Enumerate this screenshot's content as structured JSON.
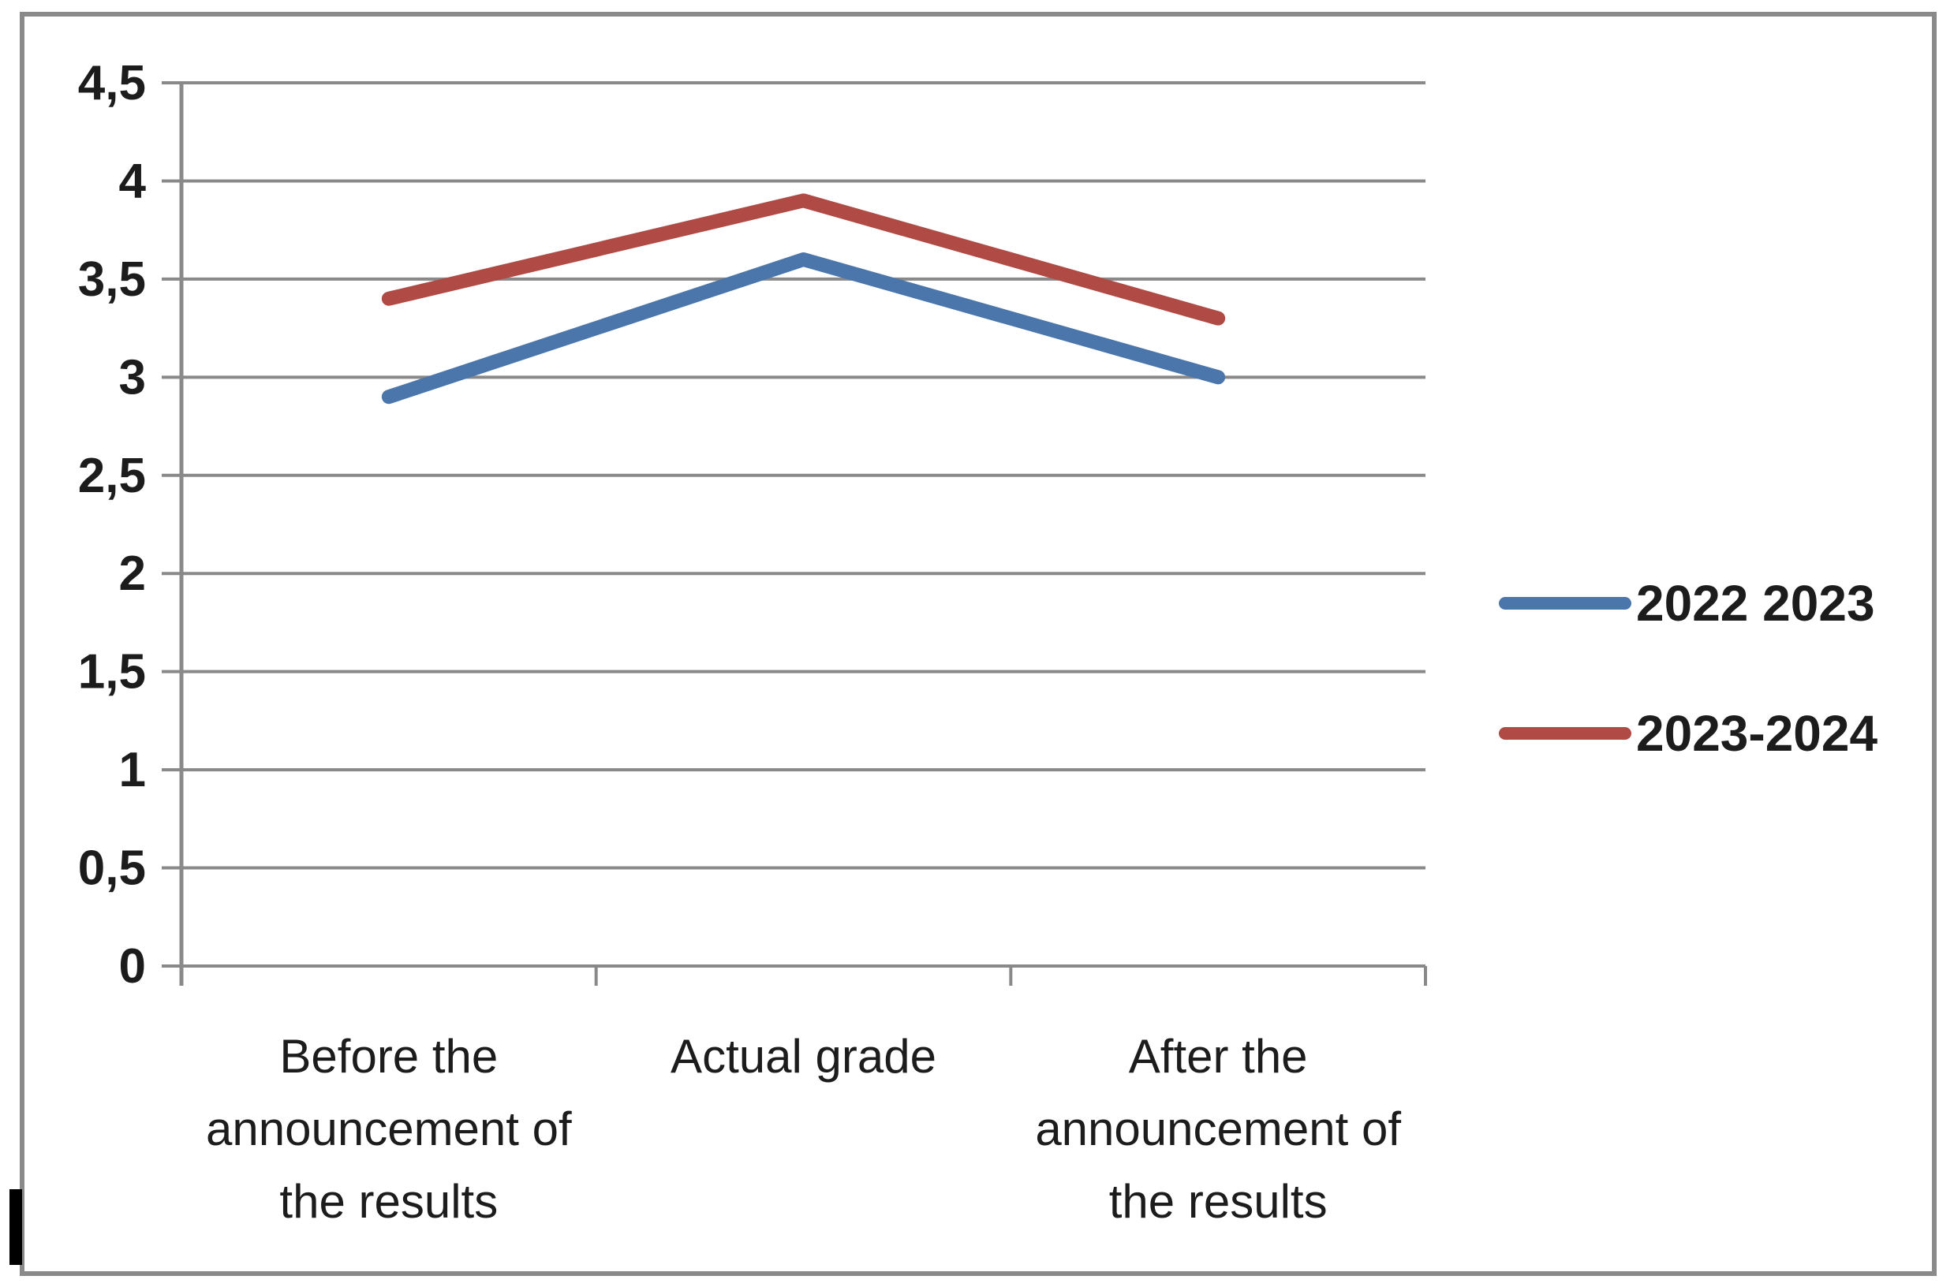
{
  "chart_data": {
    "type": "line",
    "title": "",
    "xlabel": "",
    "ylabel": "",
    "categories": [
      {
        "label": "Before the announcement of the results",
        "lines": [
          "Before the",
          "announcement of",
          "the results"
        ]
      },
      {
        "label": "Actual grade",
        "lines": [
          "Actual grade"
        ]
      },
      {
        "label": "After the announcement of the results",
        "lines": [
          "After the",
          "announcement of",
          "the results"
        ]
      }
    ],
    "series": [
      {
        "name": "2022 2023",
        "color": "#4B76AB",
        "values": [
          2.9,
          3.6,
          3.0
        ]
      },
      {
        "name": "2023-2024",
        "color": "#B04A45",
        "values": [
          3.4,
          3.9,
          3.3
        ]
      }
    ],
    "y_axis": {
      "min": 0,
      "max": 4.5,
      "step": 0.5,
      "decimal_separator": ",",
      "tick_values": [
        0,
        0.5,
        1,
        1.5,
        2,
        2.5,
        3,
        3.5,
        4,
        4.5
      ],
      "tick_labels": [
        "0",
        "0,5",
        "1",
        "1,5",
        "2",
        "2,5",
        "3",
        "3,5",
        "4",
        "4,5"
      ]
    },
    "grid": "horizontal",
    "legend_position": "right"
  },
  "colors": {
    "background": "#ffffff",
    "border": "#8a8a8a",
    "grid": "#898989",
    "axis": "#898989",
    "text": "#1c1c1c",
    "cursor_mark": "#000000"
  }
}
